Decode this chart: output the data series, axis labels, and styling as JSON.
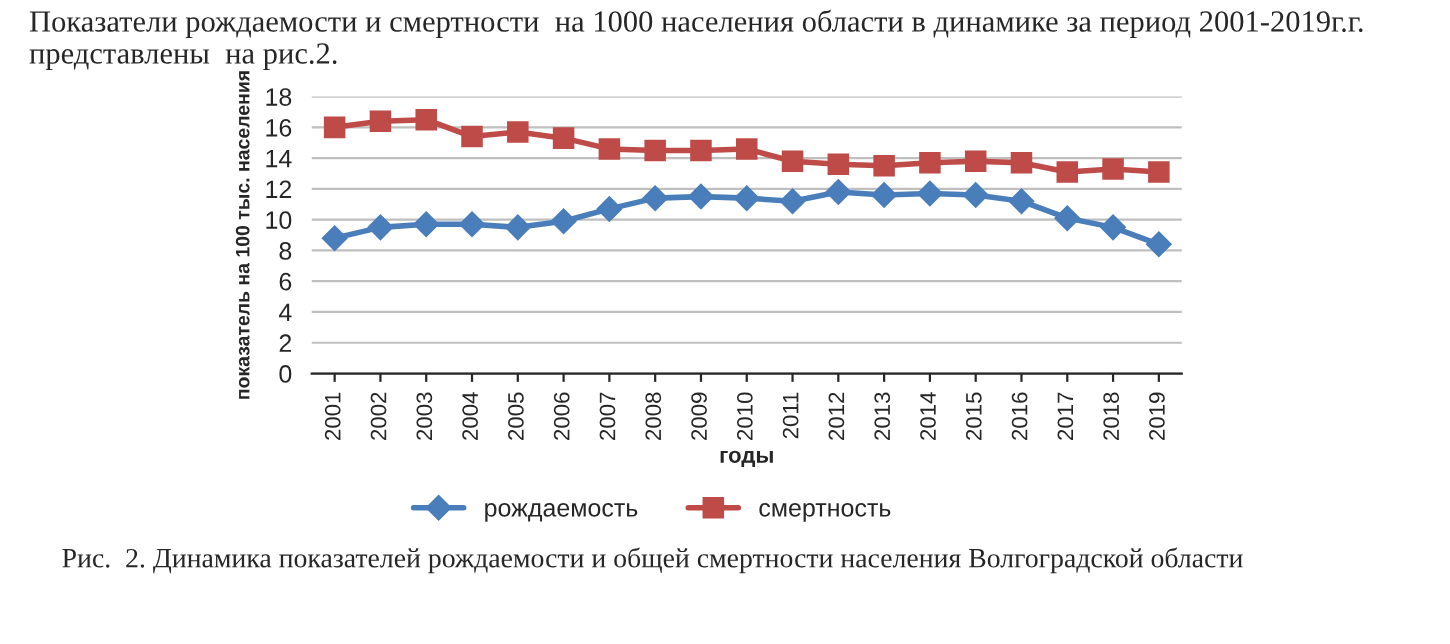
{
  "chart_data": {
    "type": "line",
    "title": "Показатели рождаемости и смертности  на 1000 населения области в динамике за период 2001-2019г.г. представлены  на рис.2.",
    "xlabel": "годы",
    "ylabel": "показатель на 100 тыс. населения",
    "categories": [
      "2001",
      "2002",
      "2003",
      "2004",
      "2005",
      "2006",
      "2007",
      "2008",
      "2009",
      "2010",
      "2011",
      "2012",
      "2013",
      "2014",
      "2015",
      "2016",
      "2017",
      "2018",
      "2019"
    ],
    "series": [
      {
        "name": "рождаемость",
        "color": "#4a7ebb",
        "marker": "diamond",
        "values": [
          8.8,
          9.5,
          9.7,
          9.7,
          9.5,
          9.9,
          10.7,
          11.4,
          11.5,
          11.4,
          11.2,
          11.8,
          11.6,
          11.7,
          11.6,
          11.2,
          10.1,
          9.5,
          8.4
        ]
      },
      {
        "name": "смертность",
        "color": "#be4b48",
        "marker": "square",
        "values": [
          16.0,
          16.4,
          16.5,
          15.4,
          15.7,
          15.3,
          14.6,
          14.5,
          14.5,
          14.6,
          13.8,
          13.6,
          13.5,
          13.7,
          13.8,
          13.7,
          13.1,
          13.3,
          13.1
        ]
      }
    ],
    "ylim": [
      0,
      18
    ],
    "yticks": [
      0,
      2,
      4,
      6,
      8,
      10,
      12,
      14,
      16,
      18
    ],
    "grid": "y",
    "legend": "bottom",
    "annotations": [
      "Рис.  2. Динамика показателей рождаемости и общей смертности населения Волгоградской области"
    ]
  }
}
